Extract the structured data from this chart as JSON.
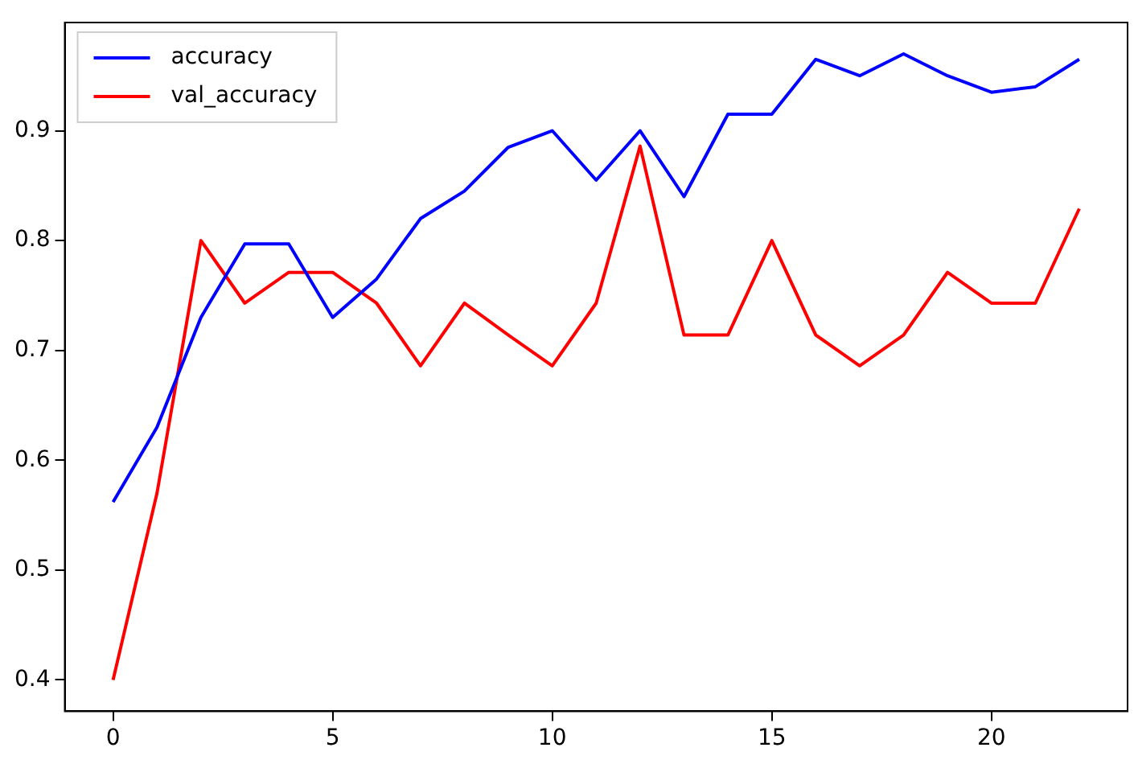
{
  "chart_data": {
    "type": "line",
    "x": [
      0,
      1,
      2,
      3,
      4,
      5,
      6,
      7,
      8,
      9,
      10,
      11,
      12,
      13,
      14,
      15,
      16,
      17,
      18,
      19,
      20,
      21,
      22
    ],
    "series": [
      {
        "name": "accuracy",
        "color": "#0000ff",
        "values": [
          0.562,
          0.63,
          0.73,
          0.797,
          0.797,
          0.73,
          0.765,
          0.82,
          0.845,
          0.885,
          0.9,
          0.855,
          0.9,
          0.84,
          0.915,
          0.915,
          0.965,
          0.95,
          0.97,
          0.95,
          0.935,
          0.94,
          0.965
        ]
      },
      {
        "name": "val_accuracy",
        "color": "#ff0000",
        "values": [
          0.4,
          0.57,
          0.8,
          0.743,
          0.771,
          0.771,
          0.743,
          0.686,
          0.743,
          0.714,
          0.686,
          0.743,
          0.886,
          0.714,
          0.714,
          0.8,
          0.714,
          0.686,
          0.714,
          0.771,
          0.743,
          0.743,
          0.829
        ]
      }
    ],
    "xlim": [
      -1.1,
      23.1
    ],
    "xticks": [
      0,
      5,
      10,
      15,
      20
    ],
    "ylim": [
      0.3715,
      0.9985
    ],
    "yticks": [
      0.4,
      0.5,
      0.6,
      0.7,
      0.8,
      0.9
    ],
    "grid": false,
    "legend": "top left",
    "marker": "none",
    "line_style": "solid"
  }
}
